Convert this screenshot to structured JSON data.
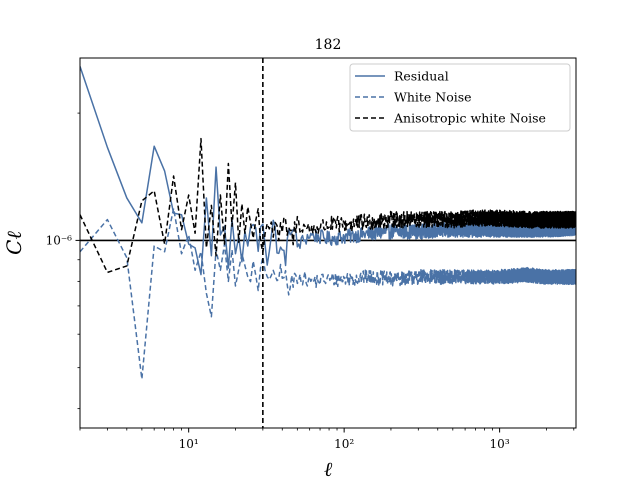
{
  "chart_data": {
    "type": "line",
    "title": "182",
    "xlabel": "ℓ",
    "ylabel": "Cℓ",
    "xscale": "log",
    "yscale": "log",
    "xlim": [
      2,
      3100
    ],
    "ylim": [
      3.6e-07,
      2.7e-06
    ],
    "xticks": [
      {
        "value": 10,
        "label": "10¹"
      },
      {
        "value": 100,
        "label": "10²"
      },
      {
        "value": 1000,
        "label": "10³"
      }
    ],
    "yticks": [
      {
        "value": 1e-06,
        "label": "10⁻⁶"
      }
    ],
    "hline": {
      "y": 1e-06,
      "color": "#000000",
      "style": "solid"
    },
    "vline": {
      "x": 30,
      "color": "#000000",
      "style": "dashed"
    },
    "legend": {
      "position": "top-right"
    },
    "series": [
      {
        "name": "Residual",
        "color": "#4a72a6",
        "style": "solid",
        "points": [
          [
            2,
            2.58e-06
          ],
          [
            3,
            1.66e-06
          ],
          [
            4,
            1.26e-06
          ],
          [
            5,
            1.1e-06
          ],
          [
            6,
            1.67e-06
          ],
          [
            7,
            1.46e-06
          ],
          [
            8,
            1.16e-06
          ],
          [
            9,
            1.15e-06
          ],
          [
            10,
            9.8e-07
          ],
          [
            11,
            9.6e-07
          ],
          [
            12,
            8.3e-07
          ],
          [
            13,
            1.26e-06
          ],
          [
            14,
            9.2e-07
          ],
          [
            15,
            1.49e-06
          ],
          [
            16,
            1.03e-06
          ],
          [
            17,
            1.08e-06
          ],
          [
            18,
            8.6e-07
          ],
          [
            19,
            1.12e-06
          ],
          [
            20,
            9.3e-07
          ],
          [
            21,
            1.02e-06
          ],
          [
            22,
            8.9e-07
          ],
          [
            23,
            1.05e-06
          ],
          [
            24,
            9.7e-07
          ],
          [
            26,
            1.13e-06
          ],
          [
            28,
            9.6e-07
          ],
          [
            30,
            1.12e-06
          ],
          [
            32,
            9.1e-07
          ],
          [
            35,
            1.09e-06
          ],
          [
            38,
            9.4e-07
          ],
          [
            42,
            9.2e-07
          ],
          [
            46,
            1.1e-06
          ],
          [
            50,
            9.7e-07
          ],
          [
            60,
            1.03e-06
          ],
          [
            80,
            1.01e-06
          ],
          [
            100,
            1.02e-06
          ],
          [
            150,
            1.04e-06
          ],
          [
            200,
            1.05e-06
          ],
          [
            300,
            1.05e-06
          ],
          [
            500,
            1.06e-06
          ],
          [
            700,
            1.06e-06
          ],
          [
            1000,
            1.06e-06
          ],
          [
            1500,
            1.06e-06
          ],
          [
            2000,
            1.06e-06
          ],
          [
            3100,
            1.07e-06
          ]
        ],
        "noise_amplitude": 0.04
      },
      {
        "name": "White Noise",
        "color": "#4a72a6",
        "style": "dashed",
        "points": [
          [
            2,
            9.4e-07
          ],
          [
            3,
            1.12e-06
          ],
          [
            4,
            9.1e-07
          ],
          [
            5,
            4.7e-07
          ],
          [
            6,
            9.7e-07
          ],
          [
            7,
            9.4e-07
          ],
          [
            8,
            1.19e-06
          ],
          [
            9,
            9.3e-07
          ],
          [
            10,
            1.03e-06
          ],
          [
            11,
            8.5e-07
          ],
          [
            12,
            9.4e-07
          ],
          [
            13,
            7.5e-07
          ],
          [
            14,
            6.6e-07
          ],
          [
            15,
            9.5e-07
          ],
          [
            16,
            8.5e-07
          ],
          [
            17,
            9.8e-07
          ],
          [
            18,
            8e-07
          ],
          [
            19,
            9.5e-07
          ],
          [
            20,
            7.8e-07
          ],
          [
            22,
            9.3e-07
          ],
          [
            24,
            8.2e-07
          ],
          [
            26,
            8.6e-07
          ],
          [
            28,
            7.6e-07
          ],
          [
            30,
            8.8e-07
          ],
          [
            33,
            8.3e-07
          ],
          [
            36,
            7.9e-07
          ],
          [
            40,
            8.6e-07
          ],
          [
            44,
            7.6e-07
          ],
          [
            50,
            8.3e-07
          ],
          [
            60,
            8e-07
          ],
          [
            80,
            8.1e-07
          ],
          [
            100,
            8.1e-07
          ],
          [
            150,
            8.2e-07
          ],
          [
            200,
            8.1e-07
          ],
          [
            300,
            8.2e-07
          ],
          [
            500,
            8.2e-07
          ],
          [
            700,
            8.2e-07
          ],
          [
            1000,
            8.2e-07
          ],
          [
            1500,
            8.3e-07
          ],
          [
            2000,
            8.2e-07
          ],
          [
            3100,
            8.2e-07
          ]
        ],
        "noise_amplitude": 0.04
      },
      {
        "name": "Anisotropic white Noise",
        "color": "#000000",
        "style": "dashed",
        "points": [
          [
            2,
            1.15e-06
          ],
          [
            3,
            8.4e-07
          ],
          [
            4,
            8.7e-07
          ],
          [
            5,
            1.24e-06
          ],
          [
            6,
            1.31e-06
          ],
          [
            7,
            9.8e-07
          ],
          [
            8,
            1.42e-06
          ],
          [
            9,
            1.06e-06
          ],
          [
            10,
            1.28e-06
          ],
          [
            11,
            1.04e-06
          ],
          [
            12,
            1.74e-06
          ],
          [
            13,
            9.6e-07
          ],
          [
            14,
            1.21e-06
          ],
          [
            15,
            9.2e-07
          ],
          [
            16,
            1.28e-06
          ],
          [
            17,
            9.8e-07
          ],
          [
            18,
            1.52e-06
          ],
          [
            19,
            1.08e-06
          ],
          [
            20,
            1.37e-06
          ],
          [
            21,
            9.9e-07
          ],
          [
            22,
            1.22e-06
          ],
          [
            23,
            1.04e-06
          ],
          [
            24,
            1.2e-06
          ],
          [
            26,
            1.02e-06
          ],
          [
            28,
            1.16e-06
          ],
          [
            30,
            9.6e-07
          ],
          [
            32,
            1.12e-06
          ],
          [
            35,
            1.05e-06
          ],
          [
            38,
            1.03e-06
          ],
          [
            42,
            1.08e-06
          ],
          [
            46,
            1.01e-06
          ],
          [
            50,
            1.1e-06
          ],
          [
            60,
            1.06e-06
          ],
          [
            80,
            1.09e-06
          ],
          [
            100,
            1.09e-06
          ],
          [
            150,
            1.11e-06
          ],
          [
            200,
            1.12e-06
          ],
          [
            300,
            1.12e-06
          ],
          [
            500,
            1.12e-06
          ],
          [
            700,
            1.13e-06
          ],
          [
            1000,
            1.13e-06
          ],
          [
            1500,
            1.12e-06
          ],
          [
            2000,
            1.12e-06
          ],
          [
            3100,
            1.12e-06
          ]
        ],
        "noise_amplitude": 0.045
      }
    ]
  }
}
